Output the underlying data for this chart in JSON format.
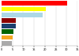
{
  "values": [
    30.3,
    20.5,
    19.1,
    6.7,
    6.7,
    5.3,
    5.1,
    4.7
  ],
  "colors": [
    "#FF0000",
    "#FFFF00",
    "#ADD8E6",
    "#8B0000",
    "#1C3F6E",
    "#006400",
    "#F5A623",
    "#AAAAAA"
  ],
  "xlim": [
    0,
    35
  ],
  "background_color": "#FFFFFF",
  "grid_color": "#CCCCCC",
  "bar_height": 0.8,
  "xtick_fontsize": 2.5
}
